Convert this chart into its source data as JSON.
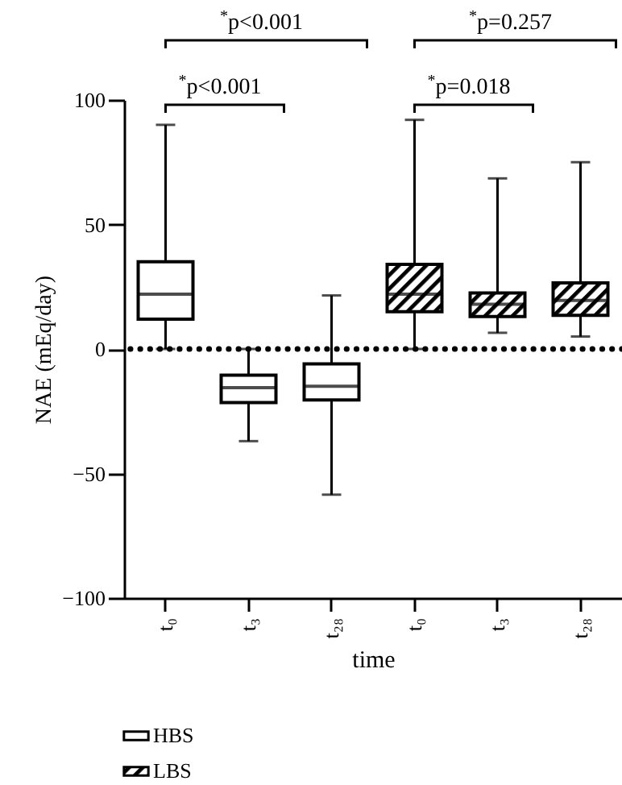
{
  "chart_data": {
    "type": "box",
    "xlabel": "time",
    "ylabel": "NAE (mEq/day)",
    "categories": [
      "t₀",
      "t₃",
      "t₂₈",
      "t₀",
      "t₃",
      "t₂₈"
    ],
    "series": [
      {
        "name": "HBS",
        "color": "#ffffff",
        "boxes": [
          {
            "low": 0,
            "q1": 12,
            "median": 22,
            "q3": 35,
            "high": 90
          },
          {
            "low": -37,
            "q1": -21.5,
            "median": -15.5,
            "q3": -10.5,
            "high": 0
          },
          {
            "low": -58.5,
            "q1": -20.5,
            "median": -15,
            "q3": -6,
            "high": 21.5
          },
          null,
          null,
          null
        ]
      },
      {
        "name": "LBS",
        "color": "#000000",
        "boxes": [
          null,
          null,
          null,
          {
            "low": 0,
            "q1": 15,
            "median": 22,
            "q3": 34,
            "high": 92
          },
          {
            "low": 6.5,
            "q1": 13,
            "median": 18,
            "q3": 22.5,
            "high": 68.5
          },
          {
            "low": 5,
            "q1": 13.5,
            "median": 19.5,
            "q3": 26.5,
            "high": 75
          }
        ]
      }
    ],
    "ylim": [
      -100,
      100
    ],
    "yticks": [
      -100,
      -50,
      0,
      50,
      100
    ],
    "grid": false,
    "legend": "bottom left",
    "ref_lines": [
      {
        "axis": "y",
        "value": 0,
        "line_style": "dotted"
      }
    ],
    "annotations": [
      "$^{*}$p<0.001",
      "$^{*}$p=0.257",
      "$^{*}$p<0.001",
      "$^{*}$p=0.018"
    ]
  }
}
